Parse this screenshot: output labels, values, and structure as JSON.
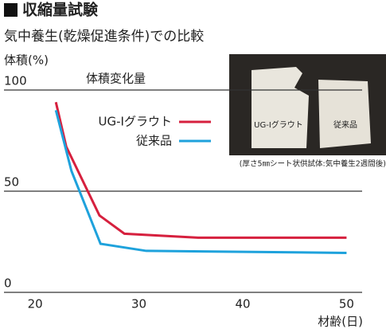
{
  "chart_data": {
    "type": "line",
    "title": "収縮量試験",
    "subtitle": "気中養生(乾燥促進条件)での比較",
    "ylabel": "体積(%)",
    "chart_label": "体積変化量",
    "xlabel": "材齢(日)",
    "xlim": [
      17,
      51.5
    ],
    "xticks": [
      20,
      30,
      40,
      50
    ],
    "ylim": [
      0,
      100
    ],
    "yticks": [
      0,
      50,
      100
    ],
    "grid": true,
    "series": [
      {
        "name": "UG-Ⅰグラウト",
        "color": "#d6203e",
        "x": [
          22,
          23,
          26.2,
          28.6,
          35.7,
          50
        ],
        "values": [
          94,
          72,
          38,
          29,
          27,
          27
        ]
      },
      {
        "name": "従来品",
        "color": "#1ea2dc",
        "x": [
          22,
          23.5,
          26.3,
          30.7,
          50
        ],
        "values": [
          90,
          60,
          24,
          20.5,
          19.5
        ]
      }
    ],
    "photo_labels": [
      "UG-Ⅰグラウト",
      "従来品"
    ],
    "photo_caption": "(厚さ5㎜シート状供試体:気中養生2週間後)"
  }
}
